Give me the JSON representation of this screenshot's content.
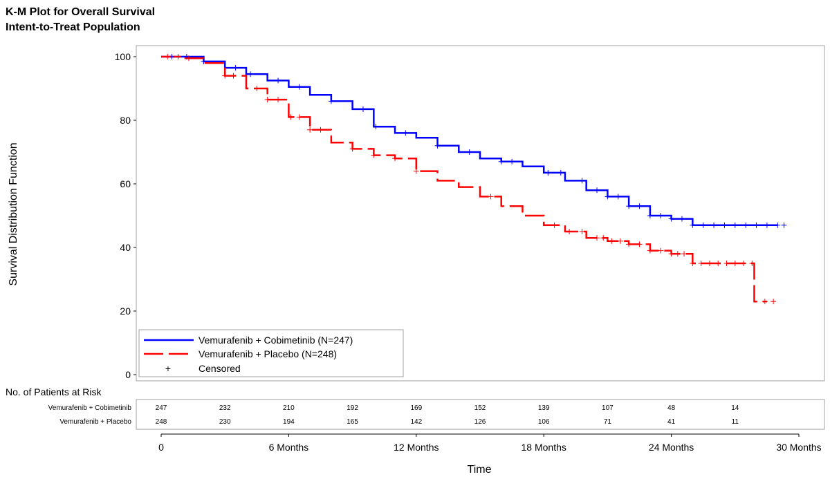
{
  "chart_data": {
    "type": "line",
    "title": "K-M Plot for Overall Survival",
    "subtitle": "Intent-to-Treat Population",
    "xlabel": "Time",
    "ylabel": "Survival Distribution Function",
    "xlim": [
      0,
      30
    ],
    "ylim": [
      0,
      100
    ],
    "x_ticks": [
      0,
      6,
      12,
      18,
      24,
      30
    ],
    "x_tick_labels": [
      "0",
      "6 Months",
      "12 Months",
      "18 Months",
      "24 Months",
      "30 Months"
    ],
    "y_ticks": [
      0,
      20,
      40,
      60,
      80,
      100
    ],
    "y_tick_labels": [
      "0",
      "20",
      "40",
      "60",
      "80",
      "100"
    ],
    "grid": false,
    "legend_position": "bottom-left",
    "legend": {
      "entries": [
        {
          "label": "Vemurafenib + Cobimetinib (N=247)",
          "series": 0
        },
        {
          "label": "Vemurafenib + Placebo (N=248)",
          "series": 1
        }
      ],
      "censored_symbol": "+",
      "censored_label": "Censored"
    },
    "series": [
      {
        "name": "Vemurafenib + Cobimetinib (N=247)",
        "color": "#0000ff",
        "dash": "solid",
        "x": [
          0,
          1,
          2,
          3,
          4,
          5,
          6,
          7,
          8,
          9,
          10,
          11,
          12,
          13,
          14,
          15,
          16,
          17,
          18,
          19,
          20,
          21,
          22,
          23,
          24,
          25,
          26,
          27,
          28,
          29
        ],
        "y": [
          100,
          100,
          98.5,
          96.5,
          94.5,
          92.5,
          90.5,
          88,
          86,
          83.5,
          78,
          76,
          74.5,
          72,
          70,
          68,
          67,
          65.5,
          63.5,
          61,
          58,
          56,
          53,
          50,
          49,
          47,
          47,
          47,
          47,
          47
        ],
        "censored_x": [
          0.5,
          1.2,
          2.0,
          3.5,
          4.2,
          5.5,
          6.5,
          8.0,
          9.5,
          10.1,
          11.5,
          13.0,
          14.5,
          16.0,
          16.5,
          18.2,
          18.8,
          19.8,
          20.5,
          21.0,
          21.5,
          22.0,
          22.5,
          23.0,
          23.5,
          24.0,
          24.5,
          25.0,
          25.5,
          26.0,
          26.5,
          27.0,
          27.5,
          28.0,
          28.5,
          29.0,
          29.3
        ]
      },
      {
        "name": "Vemurafenib + Placebo (N=248)",
        "color": "#ff0000",
        "dash": "long-dash",
        "x": [
          0,
          1,
          2,
          3,
          4,
          5,
          6,
          7,
          8,
          9,
          10,
          11,
          12,
          13,
          14,
          15,
          16,
          17,
          18,
          19,
          20,
          21,
          22,
          23,
          24,
          25,
          26,
          27,
          27.9,
          28.5
        ],
        "y": [
          100,
          99.5,
          98,
          94,
          90,
          86.5,
          81,
          77,
          73,
          71,
          69,
          68,
          64,
          61,
          59,
          56,
          53,
          50,
          47,
          45,
          43,
          42,
          41,
          39,
          38,
          35,
          35,
          35,
          23,
          23
        ],
        "censored_x": [
          0.3,
          0.8,
          1.3,
          3.0,
          3.4,
          4.5,
          5.0,
          5.5,
          6.1,
          6.5,
          7.0,
          7.5,
          9.0,
          10.0,
          11.0,
          12.0,
          15.5,
          18.5,
          19.2,
          19.8,
          20.5,
          20.8,
          21.2,
          21.6,
          22.0,
          22.5,
          23.0,
          23.5,
          24.0,
          24.3,
          24.6,
          25.0,
          25.4,
          25.8,
          26.2,
          26.6,
          27.0,
          27.4,
          27.8,
          28.4,
          28.8
        ]
      }
    ],
    "risk_table": {
      "header": "No. of Patients at Risk",
      "timepoints": [
        0,
        3,
        6,
        9,
        12,
        15,
        18,
        21,
        24,
        27
      ],
      "rows": [
        {
          "label": "Vemurafenib + Cobimetinib",
          "values": [
            "247",
            "232",
            "210",
            "192",
            "169",
            "152",
            "139",
            "107",
            "48",
            "14"
          ]
        },
        {
          "label": "Vemurafenib + Placebo",
          "values": [
            "248",
            "230",
            "194",
            "165",
            "142",
            "126",
            "106",
            "71",
            "41",
            "11"
          ]
        }
      ]
    }
  }
}
